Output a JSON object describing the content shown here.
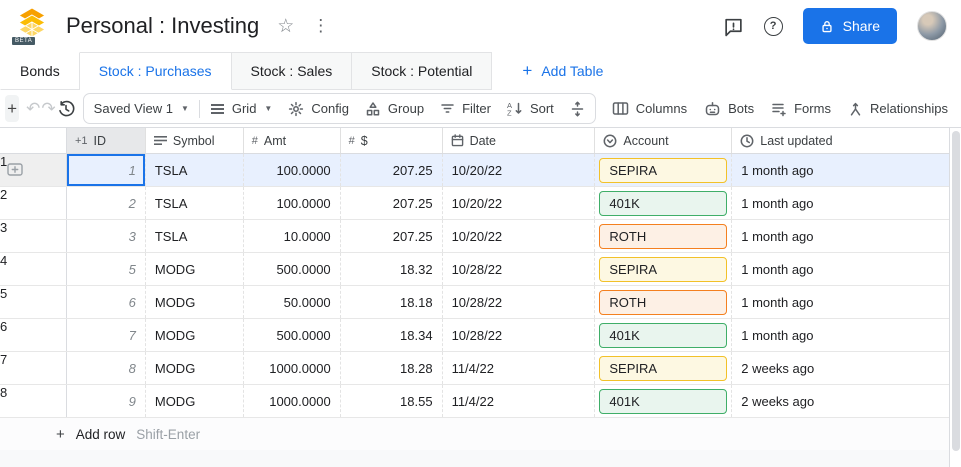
{
  "header": {
    "title": "Personal : Investing",
    "beta_badge": "BETA",
    "share_label": "Share"
  },
  "tabs": [
    {
      "label": "Bonds",
      "active": false
    },
    {
      "label": "Stock : Purchases",
      "active": true
    },
    {
      "label": "Stock : Sales",
      "active": false
    },
    {
      "label": "Stock : Potential",
      "active": false
    }
  ],
  "add_table_label": "Add Table",
  "toolbar": {
    "saved_view": "Saved View 1",
    "grid": "Grid",
    "config": "Config",
    "group": "Group",
    "filter": "Filter",
    "sort": "Sort",
    "columns": "Columns",
    "bots": "Bots",
    "forms": "Forms",
    "relationships": "Relationships"
  },
  "table": {
    "columns": [
      {
        "label": "ID",
        "icon": "autonumber-icon"
      },
      {
        "label": "Symbol",
        "icon": "text-icon"
      },
      {
        "label": "Amt",
        "icon": "number-icon"
      },
      {
        "label": "$",
        "icon": "number-icon"
      },
      {
        "label": "Date",
        "icon": "calendar-icon"
      },
      {
        "label": "Account",
        "icon": "dropdown-icon"
      },
      {
        "label": "Last updated",
        "icon": "clock-icon"
      }
    ],
    "rows": [
      {
        "n": "1",
        "id": "1",
        "symbol": "TSLA",
        "amt": "100.0000",
        "usd": "207.25",
        "date": "10/20/22",
        "account": "SEPIRA",
        "account_color": "yellow",
        "updated": "1 month ago"
      },
      {
        "n": "2",
        "id": "2",
        "symbol": "TSLA",
        "amt": "100.0000",
        "usd": "207.25",
        "date": "10/20/22",
        "account": "401K",
        "account_color": "green",
        "updated": "1 month ago"
      },
      {
        "n": "3",
        "id": "3",
        "symbol": "TSLA",
        "amt": "10.0000",
        "usd": "207.25",
        "date": "10/20/22",
        "account": "ROTH",
        "account_color": "orange",
        "updated": "1 month ago"
      },
      {
        "n": "4",
        "id": "5",
        "symbol": "MODG",
        "amt": "500.0000",
        "usd": "18.32",
        "date": "10/28/22",
        "account": "SEPIRA",
        "account_color": "yellow",
        "updated": "1 month ago"
      },
      {
        "n": "5",
        "id": "6",
        "symbol": "MODG",
        "amt": "50.0000",
        "usd": "18.18",
        "date": "10/28/22",
        "account": "ROTH",
        "account_color": "orange",
        "updated": "1 month ago"
      },
      {
        "n": "6",
        "id": "7",
        "symbol": "MODG",
        "amt": "500.0000",
        "usd": "18.34",
        "date": "10/28/22",
        "account": "401K",
        "account_color": "green",
        "updated": "1 month ago"
      },
      {
        "n": "7",
        "id": "8",
        "symbol": "MODG",
        "amt": "1000.0000",
        "usd": "18.28",
        "date": "11/4/22",
        "account": "SEPIRA",
        "account_color": "yellow",
        "updated": "2 weeks ago"
      },
      {
        "n": "8",
        "id": "9",
        "symbol": "MODG",
        "amt": "1000.0000",
        "usd": "18.55",
        "date": "11/4/22",
        "account": "401K",
        "account_color": "green",
        "updated": "2 weeks ago"
      }
    ],
    "add_row_label": "Add row",
    "add_row_hint": "Shift-Enter"
  },
  "selection": {
    "row_index": 0,
    "column": "id"
  },
  "chip_styles": {
    "yellow": {
      "bg": "#fdf8e2",
      "border": "#f2c129"
    },
    "green": {
      "bg": "#e9f5ee",
      "border": "#3fae68"
    },
    "orange": {
      "bg": "#fdf0e5",
      "border": "#f4801f"
    }
  },
  "colors": {
    "accent": "#1a73e8",
    "selected_row": "#e8f0fe"
  }
}
